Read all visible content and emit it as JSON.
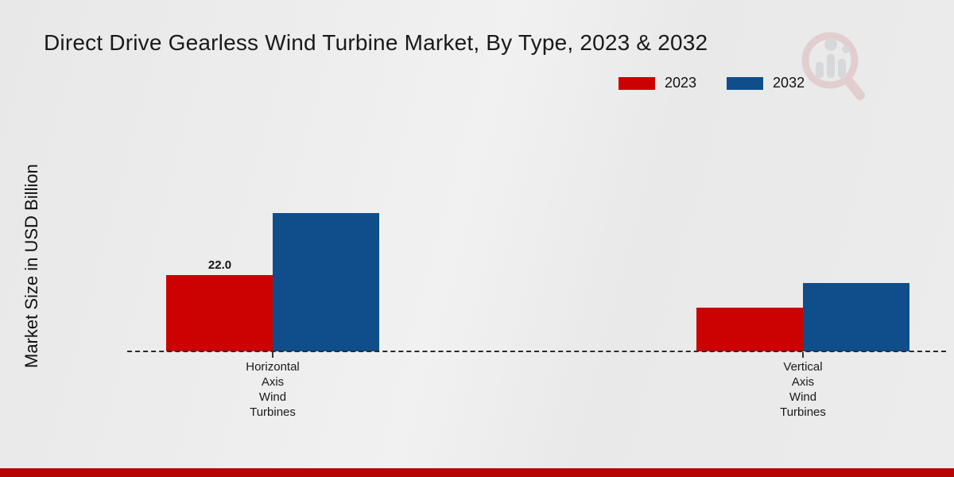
{
  "title": "Direct Drive Gearless Wind Turbine Market, By Type, 2023 & 2032",
  "ylabel": "Market Size in USD Billion",
  "legend": {
    "items": [
      {
        "label": "2023",
        "color": "#cc0202"
      },
      {
        "label": "2032",
        "color": "#0f4e8b"
      }
    ]
  },
  "watermark_icon": "magnifier-bar-chart-logo",
  "footer": {
    "accent_color": "#b50606"
  },
  "chart_data": {
    "type": "bar",
    "title": "Direct Drive Gearless Wind Turbine Market, By Type, 2023 & 2032",
    "xlabel": "",
    "ylabel": "Market Size in USD Billion",
    "categories": [
      "Horizontal Axis Wind Turbines",
      "Vertical Axis Wind Turbines"
    ],
    "series": [
      {
        "name": "2023",
        "color": "#cc0202",
        "values": [
          22.0,
          12.6
        ],
        "data_labels": [
          "22.0",
          null
        ]
      },
      {
        "name": "2032",
        "color": "#0f4e8b",
        "values": [
          39.9,
          19.7
        ],
        "data_labels": [
          null,
          null
        ]
      }
    ],
    "ylim": [
      0,
      45
    ],
    "grid": false,
    "legend_position": "top-right",
    "baseline_style": "dashed-zero-line",
    "category_label_wrap": "one-word-per-line"
  }
}
